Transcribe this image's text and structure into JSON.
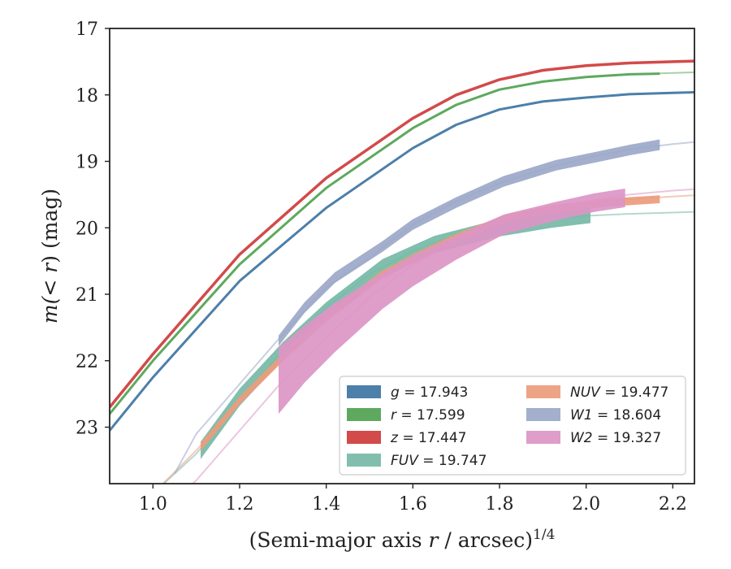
{
  "chart_data": {
    "type": "line",
    "xlabel_pre": "(Semi-major axis ",
    "xlabel_var": "r",
    "xlabel_post": " / arcsec)",
    "xlabel_sup": "1/4",
    "ylabel_pre": "m(< ",
    "ylabel_var": "r",
    "ylabel_post": ") (mag)",
    "xlim": [
      0.9,
      2.25
    ],
    "ylim": [
      23.85,
      17.0
    ],
    "y_inverted": true,
    "grid": false,
    "legend_position": "bottom-right",
    "x_ticks": [
      1.0,
      1.2,
      1.4,
      1.6,
      1.8,
      2.0,
      2.2
    ],
    "x_tick_labels": [
      "1.0",
      "1.2",
      "1.4",
      "1.6",
      "1.8",
      "2.0",
      "2.2"
    ],
    "y_ticks": [
      17,
      18,
      19,
      20,
      21,
      22,
      23
    ],
    "y_tick_labels": [
      "17",
      "18",
      "19",
      "20",
      "21",
      "22",
      "23"
    ],
    "series": [
      {
        "key": "g",
        "name": "g = 17.943",
        "label_var": "g",
        "label_rest": " = 17.943",
        "color": "#4c7faa",
        "kind": "line",
        "width": 3.0,
        "model_x": [
          0.9,
          1.0,
          1.2,
          1.4,
          1.6,
          1.7,
          1.8,
          1.9,
          2.0,
          2.1,
          2.2,
          2.25
        ],
        "model_y": [
          23.05,
          22.25,
          20.8,
          19.7,
          18.8,
          18.45,
          18.22,
          18.1,
          18.04,
          17.99,
          17.97,
          17.96
        ],
        "data_x": [
          0.9,
          1.0,
          1.2,
          1.4,
          1.6,
          1.7,
          1.8,
          1.9,
          2.0,
          2.1,
          2.2,
          2.25
        ],
        "data_y": [
          23.05,
          22.25,
          20.8,
          19.7,
          18.8,
          18.45,
          18.22,
          18.1,
          18.04,
          17.99,
          17.97,
          17.96
        ],
        "data_err": 0.01
      },
      {
        "key": "r",
        "name": "r = 17.599",
        "label_var": "r",
        "label_rest": " = 17.599",
        "color": "#5ea95e",
        "kind": "line",
        "width": 3.0,
        "model_x": [
          0.9,
          1.0,
          1.2,
          1.4,
          1.6,
          1.7,
          1.8,
          1.9,
          2.0,
          2.1,
          2.2,
          2.25
        ],
        "model_y": [
          22.8,
          22.0,
          20.55,
          19.4,
          18.5,
          18.15,
          17.92,
          17.8,
          17.73,
          17.69,
          17.67,
          17.66
        ],
        "data_x": [
          0.9,
          1.0,
          1.2,
          1.4,
          1.6,
          1.7,
          1.8,
          1.9,
          2.0,
          2.1,
          2.17
        ],
        "data_y": [
          22.8,
          22.0,
          20.55,
          19.4,
          18.5,
          18.15,
          17.92,
          17.8,
          17.73,
          17.69,
          17.68
        ],
        "data_err": 0.01
      },
      {
        "key": "z",
        "name": "z = 17.447",
        "label_var": "z",
        "label_rest": " = 17.447",
        "color": "#d24a4a",
        "kind": "line",
        "width": 3.5,
        "model_x": [
          0.9,
          1.0,
          1.2,
          1.4,
          1.6,
          1.7,
          1.8,
          1.9,
          2.0,
          2.1,
          2.2,
          2.25
        ],
        "model_y": [
          22.7,
          21.9,
          20.4,
          19.25,
          18.35,
          18.0,
          17.77,
          17.63,
          17.56,
          17.52,
          17.5,
          17.49
        ],
        "data_x": [
          0.9,
          1.0,
          1.2,
          1.4,
          1.6,
          1.7,
          1.8,
          1.9,
          2.0,
          2.1,
          2.2,
          2.25
        ],
        "data_y": [
          22.7,
          21.9,
          20.4,
          19.25,
          18.35,
          18.0,
          17.77,
          17.63,
          17.56,
          17.52,
          17.5,
          17.49
        ],
        "data_err": 0.01
      },
      {
        "key": "FUV",
        "name": "FUV = 19.747",
        "label_var": "FUV",
        "label_rest": " = 19.747",
        "color": "#76b9a6",
        "kind": "band",
        "model_x": [
          1.0,
          1.1,
          1.2,
          1.3,
          1.4,
          1.5,
          1.6,
          1.7,
          1.8,
          1.9,
          2.0,
          2.1,
          2.2,
          2.25
        ],
        "model_y": [
          24.0,
          23.4,
          22.6,
          21.85,
          21.2,
          20.7,
          20.35,
          20.1,
          19.95,
          19.87,
          19.82,
          19.79,
          19.77,
          19.76
        ],
        "data_x": [
          1.11,
          1.2,
          1.3,
          1.4,
          1.53,
          1.65,
          1.8,
          1.92,
          2.01
        ],
        "data_y": [
          23.35,
          22.55,
          21.85,
          21.25,
          20.6,
          20.25,
          20.0,
          19.87,
          19.8
        ],
        "data_err": 0.13
      },
      {
        "key": "NUV",
        "name": "NUV = 19.477",
        "label_var": "NUV",
        "label_rest": " = 19.477",
        "color": "#ec9c7c",
        "kind": "band",
        "model_x": [
          1.0,
          1.1,
          1.2,
          1.3,
          1.4,
          1.5,
          1.6,
          1.7,
          1.8,
          1.9,
          2.0,
          2.1,
          2.2,
          2.25
        ],
        "model_y": [
          24.0,
          23.35,
          22.6,
          21.9,
          21.3,
          20.8,
          20.4,
          20.1,
          19.85,
          19.72,
          19.63,
          19.57,
          19.53,
          19.51
        ],
        "data_x": [
          1.11,
          1.2,
          1.3,
          1.4,
          1.53,
          1.7,
          1.82,
          1.92,
          2.05,
          2.17
        ],
        "data_y": [
          23.3,
          22.6,
          21.95,
          21.35,
          20.7,
          20.15,
          19.85,
          19.72,
          19.62,
          19.57
        ],
        "data_err": 0.06
      },
      {
        "key": "W1",
        "name": "W1 = 18.604",
        "label_var": "W1",
        "label_rest": " = 18.604",
        "color": "#9ba8c8",
        "kind": "band",
        "model_x": [
          1.05,
          1.1,
          1.2,
          1.3,
          1.4,
          1.5,
          1.6,
          1.7,
          1.8,
          1.9,
          2.0,
          2.1,
          2.2,
          2.25
        ],
        "model_y": [
          23.7,
          23.1,
          22.35,
          21.6,
          20.9,
          20.45,
          19.95,
          19.6,
          19.33,
          19.12,
          18.95,
          18.82,
          18.74,
          18.71
        ],
        "data_x": [
          1.29,
          1.35,
          1.42,
          1.53,
          1.6,
          1.7,
          1.81,
          1.93,
          2.02,
          2.1,
          2.17
        ],
        "data_y": [
          21.7,
          21.2,
          20.75,
          20.28,
          19.95,
          19.62,
          19.3,
          19.06,
          18.94,
          18.83,
          18.75
        ],
        "data_err": 0.08
      },
      {
        "key": "W2",
        "name": "W2 = 19.327",
        "label_var": "W2",
        "label_rest": " = 19.327",
        "color": "#dc95c6",
        "kind": "band",
        "model_x": [
          1.05,
          1.1,
          1.2,
          1.3,
          1.4,
          1.5,
          1.6,
          1.7,
          1.8,
          1.9,
          2.0,
          2.1,
          2.2,
          2.25
        ],
        "model_y": [
          24.1,
          23.8,
          23.05,
          22.3,
          21.65,
          21.05,
          20.55,
          20.2,
          19.95,
          19.75,
          19.6,
          19.5,
          19.44,
          19.42
        ],
        "data_x": [
          1.29,
          1.35,
          1.42,
          1.53,
          1.6,
          1.7,
          1.81,
          1.93,
          2.02,
          2.09
        ],
        "data_y": [
          22.3,
          21.9,
          21.5,
          20.95,
          20.65,
          20.3,
          19.95,
          19.75,
          19.62,
          19.55
        ],
        "data_err_list": [
          0.5,
          0.43,
          0.37,
          0.27,
          0.23,
          0.18,
          0.15,
          0.14,
          0.14,
          0.14
        ]
      }
    ],
    "legend_order": [
      "g",
      "r",
      "z",
      "FUV",
      "NUV",
      "W1",
      "W2"
    ]
  }
}
